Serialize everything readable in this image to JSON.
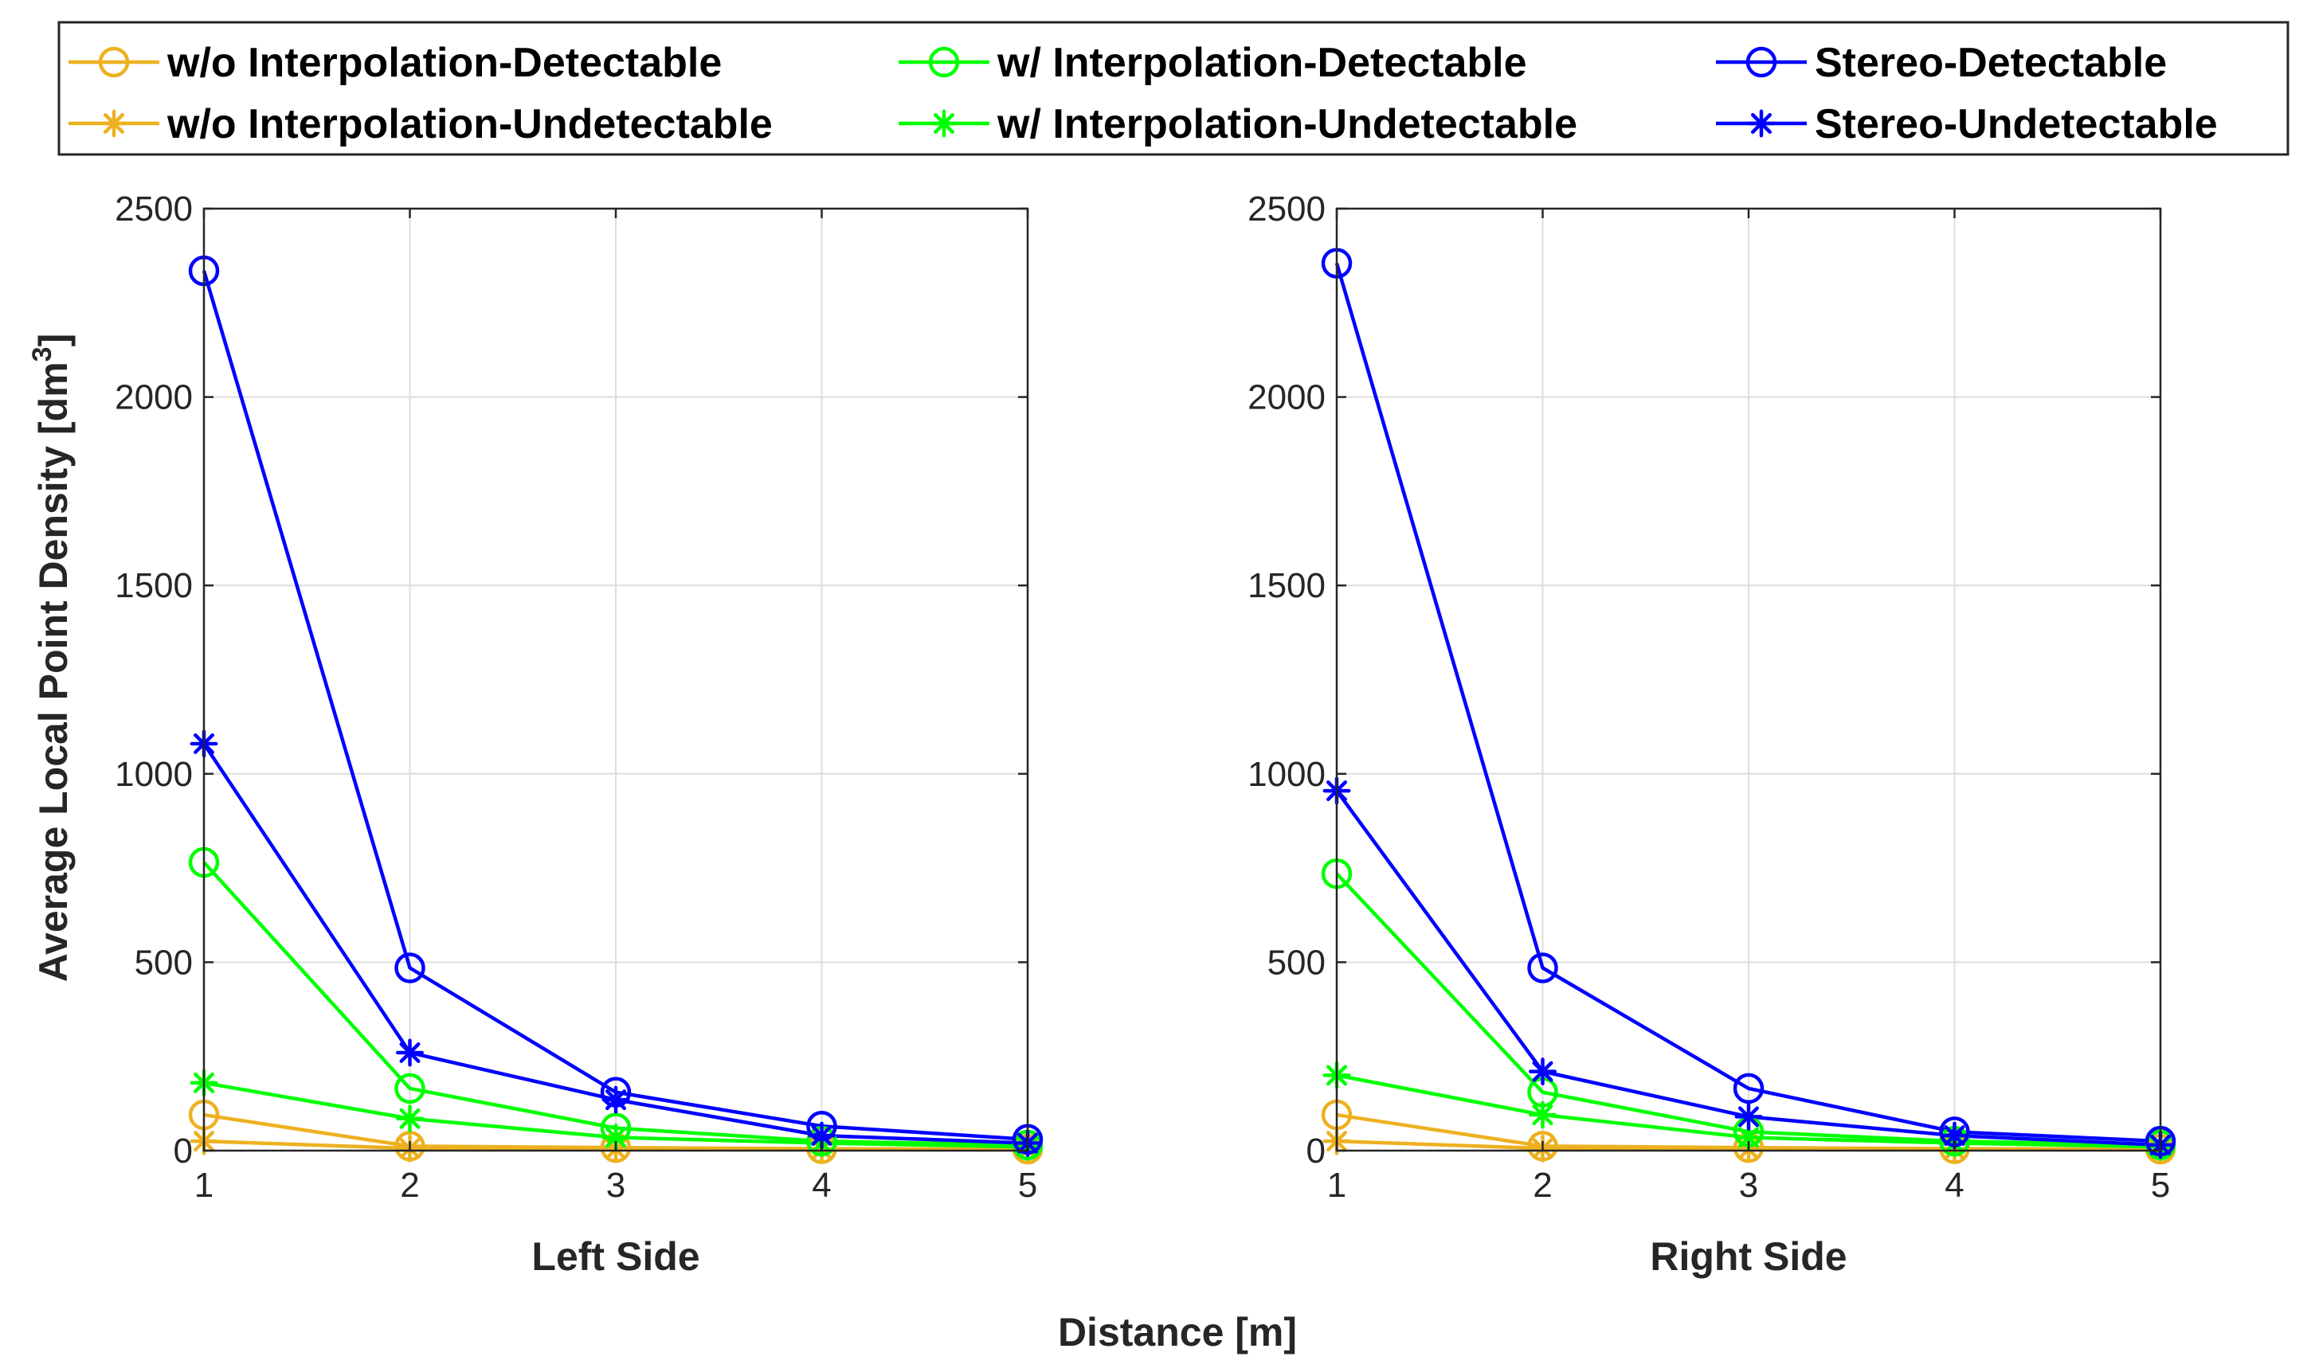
{
  "chart_data": {
    "type": "line",
    "ylabel": "Average Local Point Density [dm",
    "ylabel_superscript": "3",
    "ylabel_suffix": "]",
    "xlabel": "Distance [m]",
    "x": [
      1,
      2,
      3,
      4,
      5
    ],
    "xlim": [
      1,
      5
    ],
    "ylim": [
      0,
      2500
    ],
    "xticks": [
      "1",
      "2",
      "3",
      "4",
      "5"
    ],
    "yticks": [
      "0",
      "500",
      "1000",
      "1500",
      "2000",
      "2500"
    ],
    "grid": true,
    "legend_placement": "top",
    "legend": [
      {
        "label": "w/o Interpolation-Detectable",
        "color": "#EDB120",
        "marker": "circle"
      },
      {
        "label": "w/ Interpolation-Detectable",
        "color": "#00FF00",
        "marker": "circle"
      },
      {
        "label": "Stereo-Detectable",
        "color": "#0000FF",
        "marker": "circle"
      },
      {
        "label": "w/o Interpolation-Undetectable",
        "color": "#EDB120",
        "marker": "asterisk"
      },
      {
        "label": "w/ Interpolation-Undetectable",
        "color": "#00FF00",
        "marker": "asterisk"
      },
      {
        "label": "Stereo-Undetectable",
        "color": "#0000FF",
        "marker": "asterisk"
      }
    ],
    "panels": [
      {
        "title": "Left Side",
        "series": [
          {
            "name": "w/o Interpolation-Detectable",
            "color": "#EDB120",
            "marker": "circle",
            "values": [
              95,
              12,
              8,
              5,
              4
            ]
          },
          {
            "name": "w/o Interpolation-Undetectable",
            "color": "#EDB120",
            "marker": "asterisk",
            "values": [
              25,
              6,
              4,
              3,
              2
            ]
          },
          {
            "name": "w/ Interpolation-Detectable",
            "color": "#00FF00",
            "marker": "circle",
            "values": [
              765,
              165,
              60,
              25,
              15
            ]
          },
          {
            "name": "w/ Interpolation-Undetectable",
            "color": "#00FF00",
            "marker": "asterisk",
            "values": [
              180,
              85,
              35,
              20,
              10
            ]
          },
          {
            "name": "Stereo-Detectable",
            "color": "#0000FF",
            "marker": "circle",
            "values": [
              2335,
              485,
              155,
              65,
              30
            ]
          },
          {
            "name": "Stereo-Undetectable",
            "color": "#0000FF",
            "marker": "asterisk",
            "values": [
              1080,
              260,
              135,
              40,
              20
            ]
          }
        ]
      },
      {
        "title": "Right Side",
        "series": [
          {
            "name": "w/o Interpolation-Detectable",
            "color": "#EDB120",
            "marker": "circle",
            "values": [
              95,
              12,
              8,
              5,
              4
            ]
          },
          {
            "name": "w/o Interpolation-Undetectable",
            "color": "#EDB120",
            "marker": "asterisk",
            "values": [
              25,
              6,
              4,
              3,
              2
            ]
          },
          {
            "name": "w/ Interpolation-Detectable",
            "color": "#00FF00",
            "marker": "circle",
            "values": [
              735,
              155,
              50,
              25,
              15
            ]
          },
          {
            "name": "w/ Interpolation-Undetectable",
            "color": "#00FF00",
            "marker": "asterisk",
            "values": [
              200,
              95,
              35,
              20,
              10
            ]
          },
          {
            "name": "Stereo-Detectable",
            "color": "#0000FF",
            "marker": "circle",
            "values": [
              2355,
              485,
              165,
              50,
              25
            ]
          },
          {
            "name": "Stereo-Undetectable",
            "color": "#0000FF",
            "marker": "asterisk",
            "values": [
              955,
              210,
              90,
              40,
              15
            ]
          }
        ]
      }
    ]
  }
}
